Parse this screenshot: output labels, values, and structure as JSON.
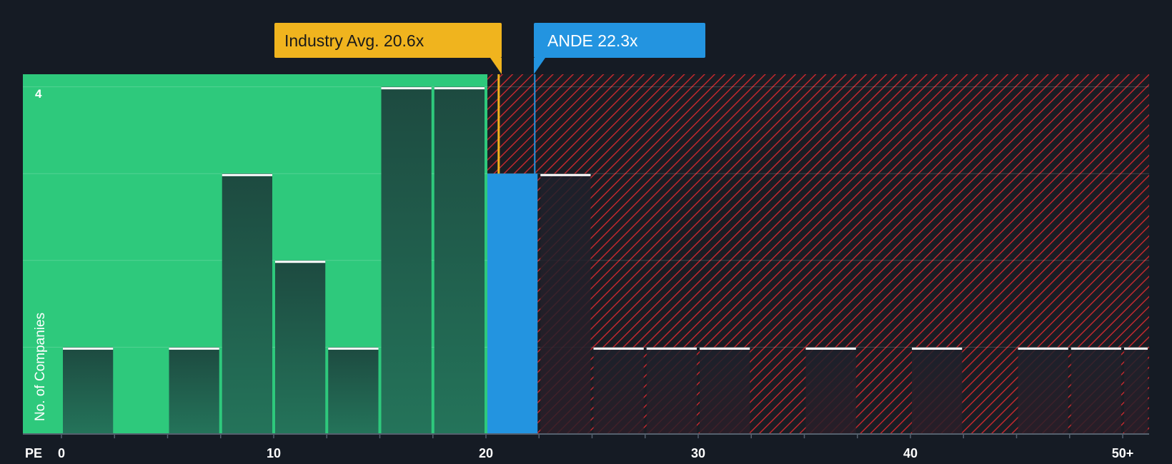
{
  "chart_data": {
    "type": "bar",
    "title": "",
    "xlabel": "PE",
    "ylabel": "No. of Companies",
    "x_ticks": [
      "0",
      "10",
      "20",
      "30",
      "40",
      "50+"
    ],
    "y_ticks": [
      "4"
    ],
    "ylim": [
      0,
      4.15
    ],
    "xlim": [
      -1.8,
      51.2
    ],
    "bin_width": 2.5,
    "bins": [
      {
        "start": 0,
        "count": 1
      },
      {
        "start": 2.5,
        "count": 0
      },
      {
        "start": 5,
        "count": 1
      },
      {
        "start": 7.5,
        "count": 3
      },
      {
        "start": 10,
        "count": 2
      },
      {
        "start": 12.5,
        "count": 1
      },
      {
        "start": 15,
        "count": 4
      },
      {
        "start": 17.5,
        "count": 4
      },
      {
        "start": 20,
        "count": 3,
        "highlight": true
      },
      {
        "start": 22.5,
        "count": 3
      },
      {
        "start": 25,
        "count": 1
      },
      {
        "start": 27.5,
        "count": 1
      },
      {
        "start": 30,
        "count": 1
      },
      {
        "start": 32.5,
        "count": 0
      },
      {
        "start": 35,
        "count": 1
      },
      {
        "start": 37.5,
        "count": 0
      },
      {
        "start": 40,
        "count": 1
      },
      {
        "start": 42.5,
        "count": 0
      },
      {
        "start": 45,
        "count": 1
      },
      {
        "start": 47.5,
        "count": 1
      },
      {
        "start": 50,
        "count": 1,
        "label": "50+"
      }
    ],
    "annotations": [
      {
        "label": "Industry Avg. 20.6x",
        "value": 20.6,
        "color": "#f0b41e"
      },
      {
        "label": "ANDE 22.3x",
        "value": 22.3,
        "color": "#2394e0"
      }
    ],
    "regions": [
      {
        "name": "undervalued",
        "from": -1.8,
        "to": 20.6,
        "color": "#2ec97c"
      },
      {
        "name": "overvalued",
        "from": 20.6,
        "to": 51.2,
        "color": "#b8282d",
        "pattern": "hatched"
      }
    ],
    "grid": true,
    "legend": "none"
  },
  "labels": {
    "industry_avg": "Industry Avg. 20.6x",
    "company": "ANDE 22.3x",
    "x_axis_label": "PE",
    "y_axis_label": "No. of Companies",
    "y_tick_4": "4"
  },
  "colors": {
    "background": "#151b24",
    "green_region": "#2ec97c",
    "bar_dark": "#1f4a3f",
    "red_hatch": "#c0282e",
    "industry": "#f0b41e",
    "company": "#2394e0"
  }
}
